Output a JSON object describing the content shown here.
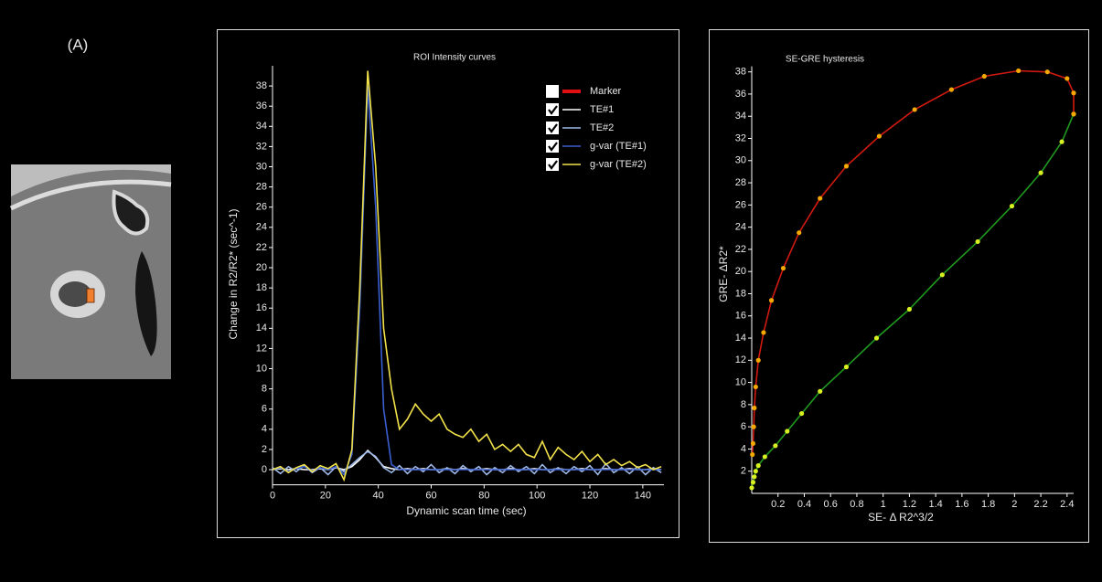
{
  "panel_label": "(A)",
  "chart_data": [
    {
      "type": "line",
      "title": "ROI Intensity curves",
      "x_label": "Dynamic scan time (sec)",
      "y_label": "Change in R2/R2* (sec^-1)",
      "xlim": [
        0,
        148
      ],
      "xticks": [
        0,
        20,
        40,
        60,
        80,
        100,
        120,
        140
      ],
      "ylim": [
        -1.5,
        40
      ],
      "yticks": [
        0,
        2,
        4,
        6,
        8,
        10,
        12,
        14,
        16,
        18,
        20,
        22,
        24,
        26,
        28,
        30,
        32,
        34,
        36,
        38
      ],
      "legend": "top-right",
      "x": [
        0,
        3,
        6,
        9,
        12,
        15,
        18,
        21,
        24,
        27,
        30,
        33,
        36,
        39,
        42,
        45,
        48,
        51,
        54,
        57,
        60,
        63,
        66,
        69,
        72,
        75,
        78,
        81,
        84,
        87,
        90,
        93,
        96,
        99,
        102,
        105,
        108,
        111,
        114,
        117,
        120,
        123,
        126,
        129,
        132,
        135,
        138,
        141,
        144,
        147
      ],
      "series": [
        {
          "name": "Marker",
          "color": "#e01010",
          "checked": false
        },
        {
          "name": "TE#1",
          "color": "#ffffff",
          "checked": true,
          "values": [
            0,
            0.1,
            0,
            0.1,
            0,
            0,
            0.1,
            0,
            0.2,
            0,
            0.3,
            1,
            1.9,
            1.2,
            0.3,
            0.1,
            0,
            0.1,
            0,
            0.1,
            0,
            0,
            0.1,
            0,
            0.1,
            0,
            0,
            0.1,
            0,
            0,
            0.1,
            0,
            0,
            0.1,
            0,
            0,
            0.1,
            0,
            0,
            0.1,
            0,
            0,
            0.1,
            0,
            0,
            0.1,
            0,
            0,
            0.1,
            0
          ]
        },
        {
          "name": "TE#2",
          "color": "#9db8e8",
          "checked": true,
          "values": [
            0.2,
            -0.4,
            0.3,
            -0.2,
            0.4,
            -0.3,
            0.2,
            -0.5,
            0.3,
            -0.2,
            0.5,
            1.2,
            1.8,
            1.3,
            0.2,
            -0.3,
            0.4,
            -0.4,
            0.3,
            -0.2,
            0.5,
            -0.3,
            0.2,
            -0.4,
            0.4,
            -0.2,
            0.3,
            -0.5,
            0.2,
            -0.3,
            0.4,
            -0.2,
            0.3,
            -0.4,
            0.5,
            -0.3,
            0.2,
            -0.4,
            0.3,
            -0.2,
            0.4,
            -0.5,
            0.6,
            -0.3,
            0.2,
            -0.4,
            0.3,
            -0.5,
            0.2,
            -0.3
          ]
        },
        {
          "name": "g-var (TE#1)",
          "color": "#3a5fd0",
          "checked": true,
          "values": [
            0,
            0.2,
            -0.2,
            0.1,
            0.3,
            -0.1,
            0.2,
            0,
            0.3,
            -0.5,
            1.5,
            16,
            38,
            26,
            6,
            0.5,
            0,
            0,
            0,
            0,
            0,
            0,
            0,
            0,
            0,
            0,
            0,
            0,
            0,
            0,
            0,
            0,
            0,
            0,
            0,
            0,
            0,
            0,
            0,
            0,
            0,
            0,
            0,
            0,
            0,
            0,
            0,
            0,
            0,
            0
          ]
        },
        {
          "name": "g-var (TE#2)",
          "color": "#f2e24a",
          "checked": true,
          "values": [
            0,
            0.3,
            -0.3,
            0.2,
            0.5,
            -0.2,
            0.4,
            0.1,
            0.6,
            -1,
            2,
            18,
            39.5,
            30,
            14,
            8,
            4,
            5,
            6.5,
            5.5,
            4.8,
            5.5,
            4,
            3.5,
            3.2,
            4,
            2.8,
            3.5,
            2,
            2.5,
            1.8,
            2.5,
            1.5,
            1.2,
            2.8,
            1,
            2.2,
            1.5,
            1,
            1.8,
            0.8,
            1.5,
            0.5,
            1,
            0.4,
            0.8,
            0.2,
            0.5,
            0,
            0.3
          ]
        }
      ]
    },
    {
      "type": "line",
      "title": "SE-GRE hysteresis",
      "x_label": "SE- Δ R2^3/2",
      "y_label": "GRE- ΔR2*",
      "xlim": [
        0,
        2.45
      ],
      "xticks": [
        0.2,
        0.4,
        0.6,
        0.8,
        1,
        1.2,
        1.4,
        1.6,
        1.8,
        2,
        2.2,
        2.4
      ],
      "ylim": [
        0,
        38.5
      ],
      "yticks": [
        2,
        4,
        6,
        8,
        10,
        12,
        14,
        16,
        18,
        20,
        22,
        24,
        26,
        28,
        30,
        32,
        34,
        36,
        38
      ],
      "series": [
        {
          "color": "#1f9a1f",
          "marker_color": "#d8f020",
          "x": [
            0,
            0.01,
            0.02,
            0.03,
            0.05,
            0.1,
            0.18,
            0.27,
            0.38,
            0.52,
            0.72,
            0.95,
            1.2,
            1.45,
            1.72,
            1.98,
            2.2,
            2.36,
            2.45
          ],
          "values": [
            0.5,
            1,
            1.5,
            2,
            2.5,
            3.3,
            4.3,
            5.6,
            7.2,
            9.2,
            11.4,
            14,
            16.6,
            19.7,
            22.7,
            25.9,
            28.9,
            31.7,
            34.2
          ]
        },
        {
          "color": "#d01a10",
          "marker_color": "#f5a800",
          "x": [
            2.45,
            2.45,
            2.4,
            2.25,
            2.03,
            1.77,
            1.52,
            1.24,
            0.97,
            0.72,
            0.52,
            0.36,
            0.24,
            0.15,
            0.09,
            0.05,
            0.03,
            0.02,
            0.015,
            0.01,
            0.005
          ],
          "values": [
            34.2,
            36.1,
            37.4,
            38,
            38.1,
            37.6,
            36.4,
            34.6,
            32.2,
            29.5,
            26.6,
            23.5,
            20.3,
            17.4,
            14.5,
            12,
            9.6,
            7.7,
            6,
            4.5,
            3.5
          ]
        }
      ]
    }
  ]
}
